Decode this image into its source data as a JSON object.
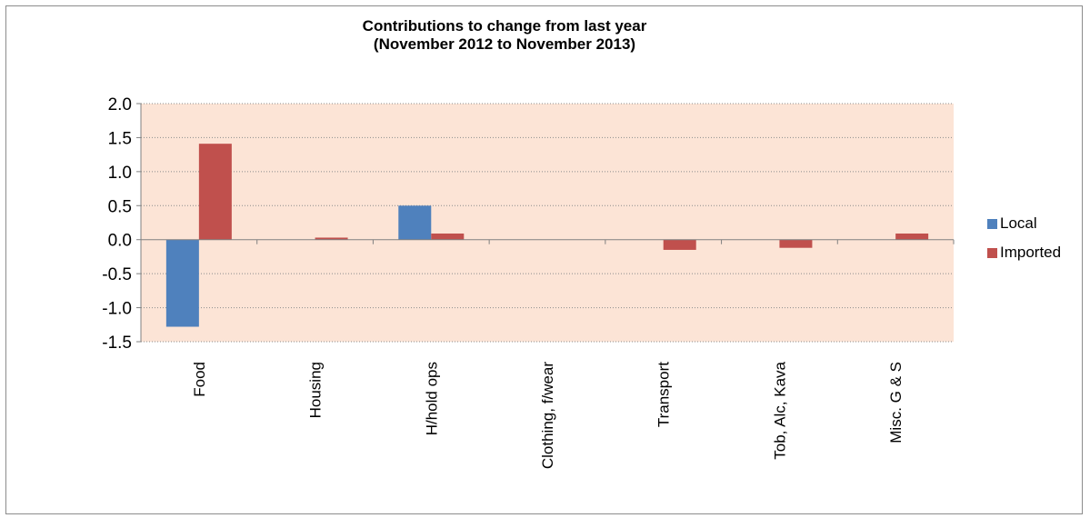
{
  "chart_data": {
    "type": "bar",
    "title": "Contributions to change from last year",
    "subtitle": "(November 2012 to November 2013)",
    "categories": [
      "Food",
      "Housing",
      "H/hold ops",
      "Clothing, f/wear",
      "Transport",
      "Tob, Alc, Kava",
      "Misc. G & S"
    ],
    "series": [
      {
        "name": "Local",
        "color": "#4f81bd",
        "values": [
          -1.28,
          0.0,
          0.5,
          0.0,
          0.0,
          0.0,
          0.0
        ]
      },
      {
        "name": "Imported",
        "color": "#c0504d",
        "values": [
          1.41,
          0.03,
          0.09,
          0.0,
          -0.15,
          -0.12,
          0.09
        ]
      }
    ],
    "ylim": [
      -1.5,
      2.0
    ],
    "yticks": [
      "2.0",
      "1.5",
      "1.0",
      "0.5",
      "0.0",
      "-0.5",
      "-1.0",
      "-1.5"
    ],
    "ytick_values": [
      2.0,
      1.5,
      1.0,
      0.5,
      0.0,
      -0.5,
      -1.0,
      -1.5
    ],
    "grid": true,
    "legend_position": "right",
    "plot_background": "#fce4d6",
    "xlabel": "",
    "ylabel": ""
  }
}
